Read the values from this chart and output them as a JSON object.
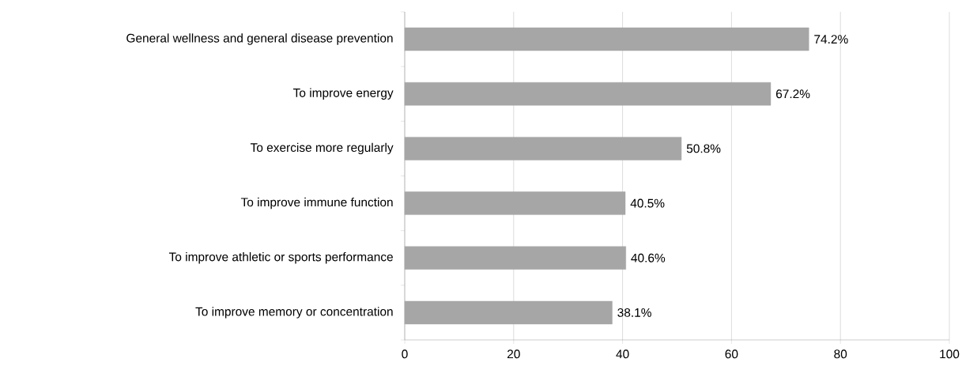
{
  "chart_data": {
    "type": "bar",
    "orientation": "horizontal",
    "categories": [
      "General wellness and general disease prevention",
      "To improve energy",
      "To exercise more regularly",
      "To improve immune function",
      "To improve athletic or sports performance",
      "To improve memory or concentration"
    ],
    "values": [
      74.2,
      67.2,
      50.8,
      40.5,
      40.6,
      38.1
    ],
    "value_labels": [
      "74.2%",
      "67.2%",
      "50.8%",
      "40.5%",
      "40.6%",
      "38.1%"
    ],
    "color": "#a6a6a6",
    "xlim": [
      0,
      100
    ],
    "xticks": [
      0,
      20,
      40,
      60,
      80,
      100
    ],
    "grid": "x"
  }
}
